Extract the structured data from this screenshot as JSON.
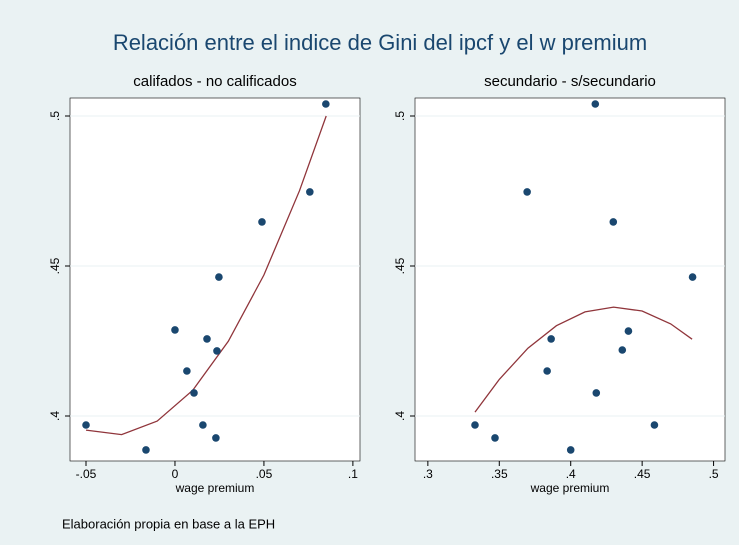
{
  "title": "Relación entre el indice de Gini del ipcf y el w premium",
  "note": "Elaboración propia en base a la EPH",
  "chart_data": [
    {
      "type": "scatter",
      "title": "califados - no calificados",
      "xlabel": "wage premium",
      "x": [
        -0.05,
        -0.0163,
        0,
        0.0067,
        0.0107,
        0.0157,
        0.018,
        0.023,
        0.0236,
        0.0247,
        0.0489,
        0.0758,
        0.0848
      ],
      "y": [
        0.397,
        0.3887,
        0.4287,
        0.415,
        0.4077,
        0.397,
        0.4257,
        0.3927,
        0.4217,
        0.4463,
        0.4647,
        0.4747,
        0.504
      ],
      "color": "#1a476f",
      "fit": {
        "x": [
          -0.05,
          -0.03,
          -0.01,
          0.01,
          0.03,
          0.05,
          0.07,
          0.085
        ],
        "y": [
          0.3953,
          0.3938,
          0.3983,
          0.4086,
          0.4249,
          0.447,
          0.4751,
          0.5
        ],
        "color": "#90353b"
      },
      "xlim": [
        -0.059,
        0.104
      ],
      "ylim": [
        0.385,
        0.506
      ],
      "xticks": [
        {
          "value": -0.05,
          "label": "-.05"
        },
        0,
        {
          "value": 0.05,
          "label": ".05"
        },
        {
          "value": 0.1,
          "label": ".1"
        }
      ],
      "yticks": [
        {
          "value": 0.4,
          "label": ".4"
        },
        {
          "value": 0.45,
          "label": ".45"
        },
        {
          "value": 0.5,
          "label": ".5"
        }
      ],
      "grid": true
    },
    {
      "type": "scatter",
      "title": "secundario - s/secundario",
      "xlabel": "wage premium",
      "x": [
        0.333,
        0.347,
        0.3695,
        0.3835,
        0.3863,
        0.4,
        0.4172,
        0.4179,
        0.4298,
        0.4361,
        0.4404,
        0.4586,
        0.4853
      ],
      "y": [
        0.397,
        0.3927,
        0.4747,
        0.415,
        0.4257,
        0.3887,
        0.504,
        0.4077,
        0.4647,
        0.422,
        0.4283,
        0.397,
        0.4463
      ],
      "color": "#1a476f",
      "fit": {
        "x": [
          0.333,
          0.35,
          0.37,
          0.39,
          0.41,
          0.43,
          0.45,
          0.47,
          0.485
        ],
        "y": [
          0.4013,
          0.4122,
          0.4226,
          0.4301,
          0.4347,
          0.4363,
          0.435,
          0.4307,
          0.4256
        ],
        "color": "#90353b"
      },
      "xlim": [
        0.291,
        0.508
      ],
      "ylim": [
        0.385,
        0.506
      ],
      "xticks": [
        {
          "value": 0.3,
          "label": ".3"
        },
        {
          "value": 0.35,
          "label": ".35"
        },
        {
          "value": 0.4,
          "label": ".4"
        },
        {
          "value": 0.45,
          "label": ".45"
        },
        {
          "value": 0.5,
          "label": ".5"
        }
      ],
      "yticks": [
        {
          "value": 0.4,
          "label": ".4"
        },
        {
          "value": 0.45,
          "label": ".45"
        },
        {
          "value": 0.5,
          "label": ".5"
        }
      ],
      "grid": true
    }
  ]
}
